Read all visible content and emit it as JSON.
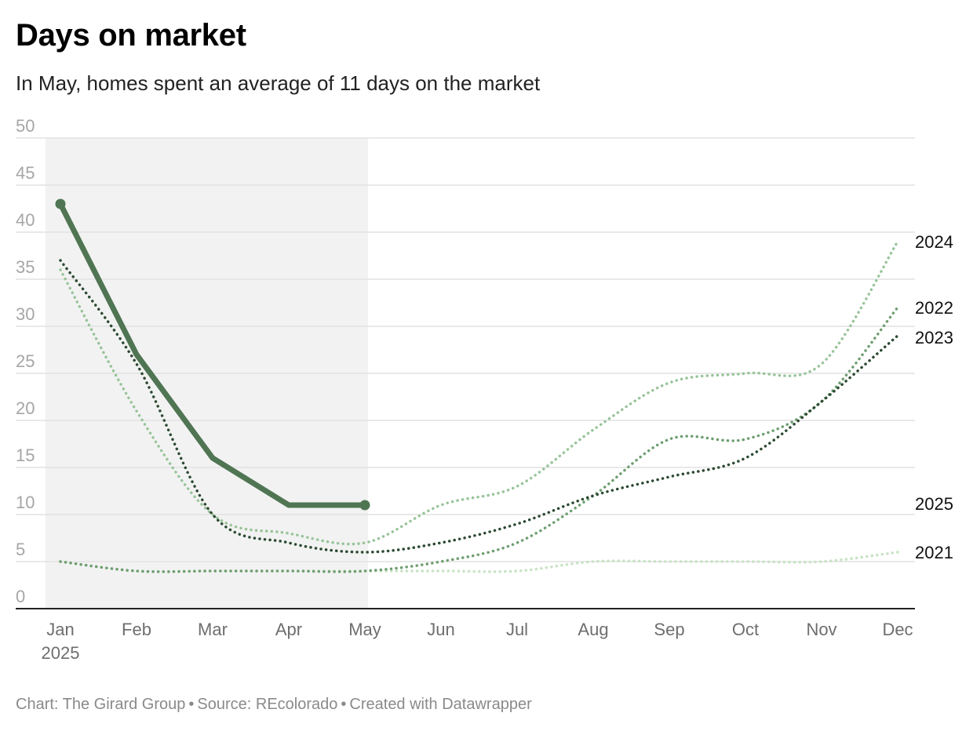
{
  "title": "Days on market",
  "subtitle": "In May, homes spent an average of 11 days on the market",
  "footer": {
    "chart_by": "Chart: The Girard Group",
    "source": "Source: REcolorado",
    "created_with": "Created with Datawrapper",
    "separator": "•"
  },
  "chart_data": {
    "type": "line",
    "title": "Days on market",
    "subtitle": "In May, homes spent an average of 11 days on the market",
    "xlabel": "",
    "ylabel": "",
    "categories": [
      "Jan",
      "Feb",
      "Mar",
      "Apr",
      "May",
      "Jun",
      "Jul",
      "Aug",
      "Sep",
      "Oct",
      "Nov",
      "Dec"
    ],
    "x_year_label": "2025",
    "yticks": [
      0,
      5,
      10,
      15,
      20,
      25,
      30,
      35,
      40,
      45,
      50
    ],
    "ylim": [
      0,
      50
    ],
    "grid": true,
    "highlight_range": [
      "Jan",
      "May"
    ],
    "series": [
      {
        "name": "2021",
        "style": "dotted",
        "color": "#c8e3c4",
        "values": [
          5,
          4,
          4,
          4,
          4,
          4,
          4,
          5,
          5,
          5,
          5,
          6
        ]
      },
      {
        "name": "2022",
        "style": "dotted",
        "color": "#6e9e70",
        "values": [
          5,
          4,
          4,
          4,
          4,
          5,
          7,
          12,
          18,
          18,
          22,
          32
        ]
      },
      {
        "name": "2024",
        "style": "dotted",
        "color": "#98c49a",
        "values": [
          36,
          21,
          10,
          8,
          7,
          11,
          13,
          19,
          24,
          25,
          26,
          39
        ]
      },
      {
        "name": "2023",
        "style": "dotted",
        "color": "#2c4a32",
        "values": [
          37,
          26,
          10,
          7,
          6,
          7,
          9,
          12,
          14,
          16,
          22,
          29
        ]
      },
      {
        "name": "2025",
        "style": "solid",
        "color": "#4f7553",
        "values": [
          43,
          27,
          16,
          11,
          11,
          null,
          null,
          null,
          null,
          null,
          null,
          null
        ]
      }
    ]
  }
}
